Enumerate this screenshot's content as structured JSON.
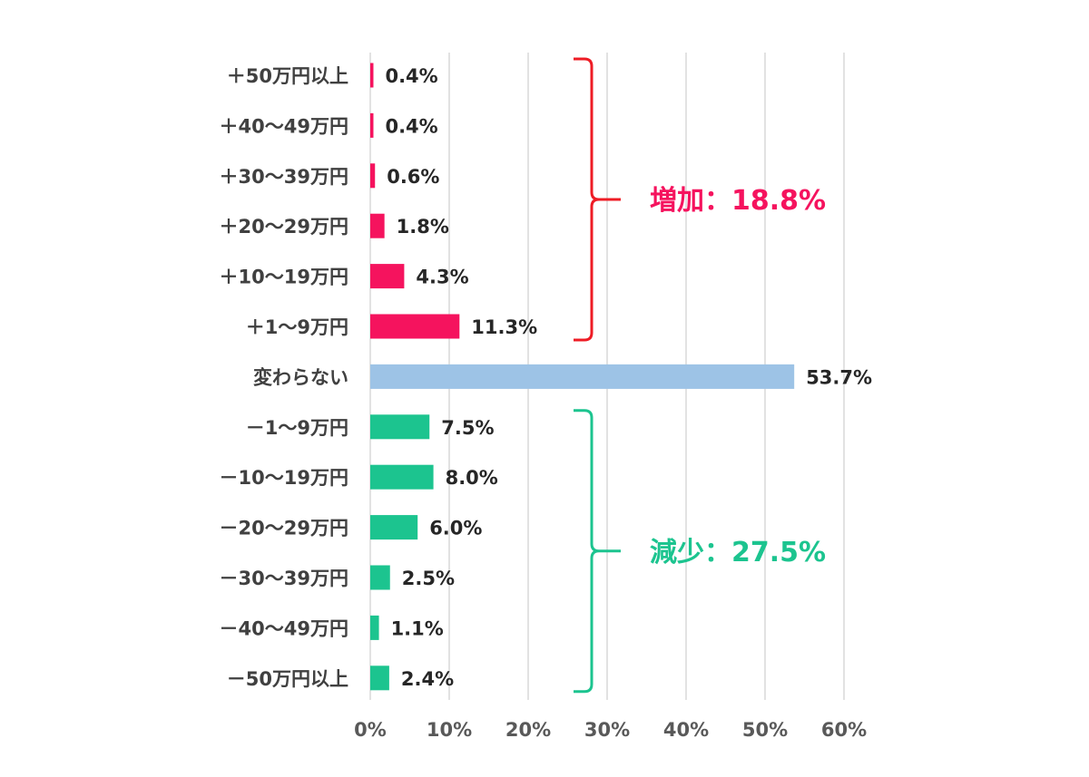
{
  "chart_data": {
    "type": "bar",
    "orientation": "horizontal",
    "categories": [
      "＋50万円以上",
      "＋40～49万円",
      "＋30～39万円",
      "＋20～29万円",
      "＋10～19万円",
      "＋1～9万円",
      "変わらない",
      "－1～9万円",
      "－10～19万円",
      "－20～29万円",
      "－30～39万円",
      "－40～49万円",
      "－50万円以上"
    ],
    "values": [
      0.4,
      0.4,
      0.6,
      1.8,
      4.3,
      11.3,
      53.7,
      7.5,
      8.0,
      6.0,
      2.5,
      1.1,
      2.4
    ],
    "value_labels": [
      "0.4%",
      "0.4%",
      "0.6%",
      "1.8%",
      "4.3%",
      "11.3%",
      "53.7%",
      "7.5%",
      "8.0%",
      "6.0%",
      "2.5%",
      "1.1%",
      "2.4%"
    ],
    "bar_colors": [
      "#f5135e",
      "#f5135e",
      "#f5135e",
      "#f5135e",
      "#f5135e",
      "#f5135e",
      "#9dc3e6",
      "#1cc48f",
      "#1cc48f",
      "#1cc48f",
      "#1cc48f",
      "#1cc48f",
      "#1cc48f"
    ],
    "xlim": [
      0,
      60
    ],
    "x_ticks": [
      0,
      10,
      20,
      30,
      40,
      50,
      60
    ],
    "x_tick_labels": [
      "0%",
      "10%",
      "20%",
      "30%",
      "40%",
      "50%",
      "60%"
    ],
    "grid": true,
    "title": "",
    "xlabel": "",
    "ylabel": "",
    "groups": [
      {
        "label": "増加：18.8%",
        "color": "#f5135e",
        "bracket_color": "#ee1c25",
        "from": 0,
        "to": 5
      },
      {
        "label": "減少：27.5%",
        "color": "#1cc48f",
        "bracket_color": "#1cc48f",
        "from": 7,
        "to": 12
      }
    ]
  }
}
